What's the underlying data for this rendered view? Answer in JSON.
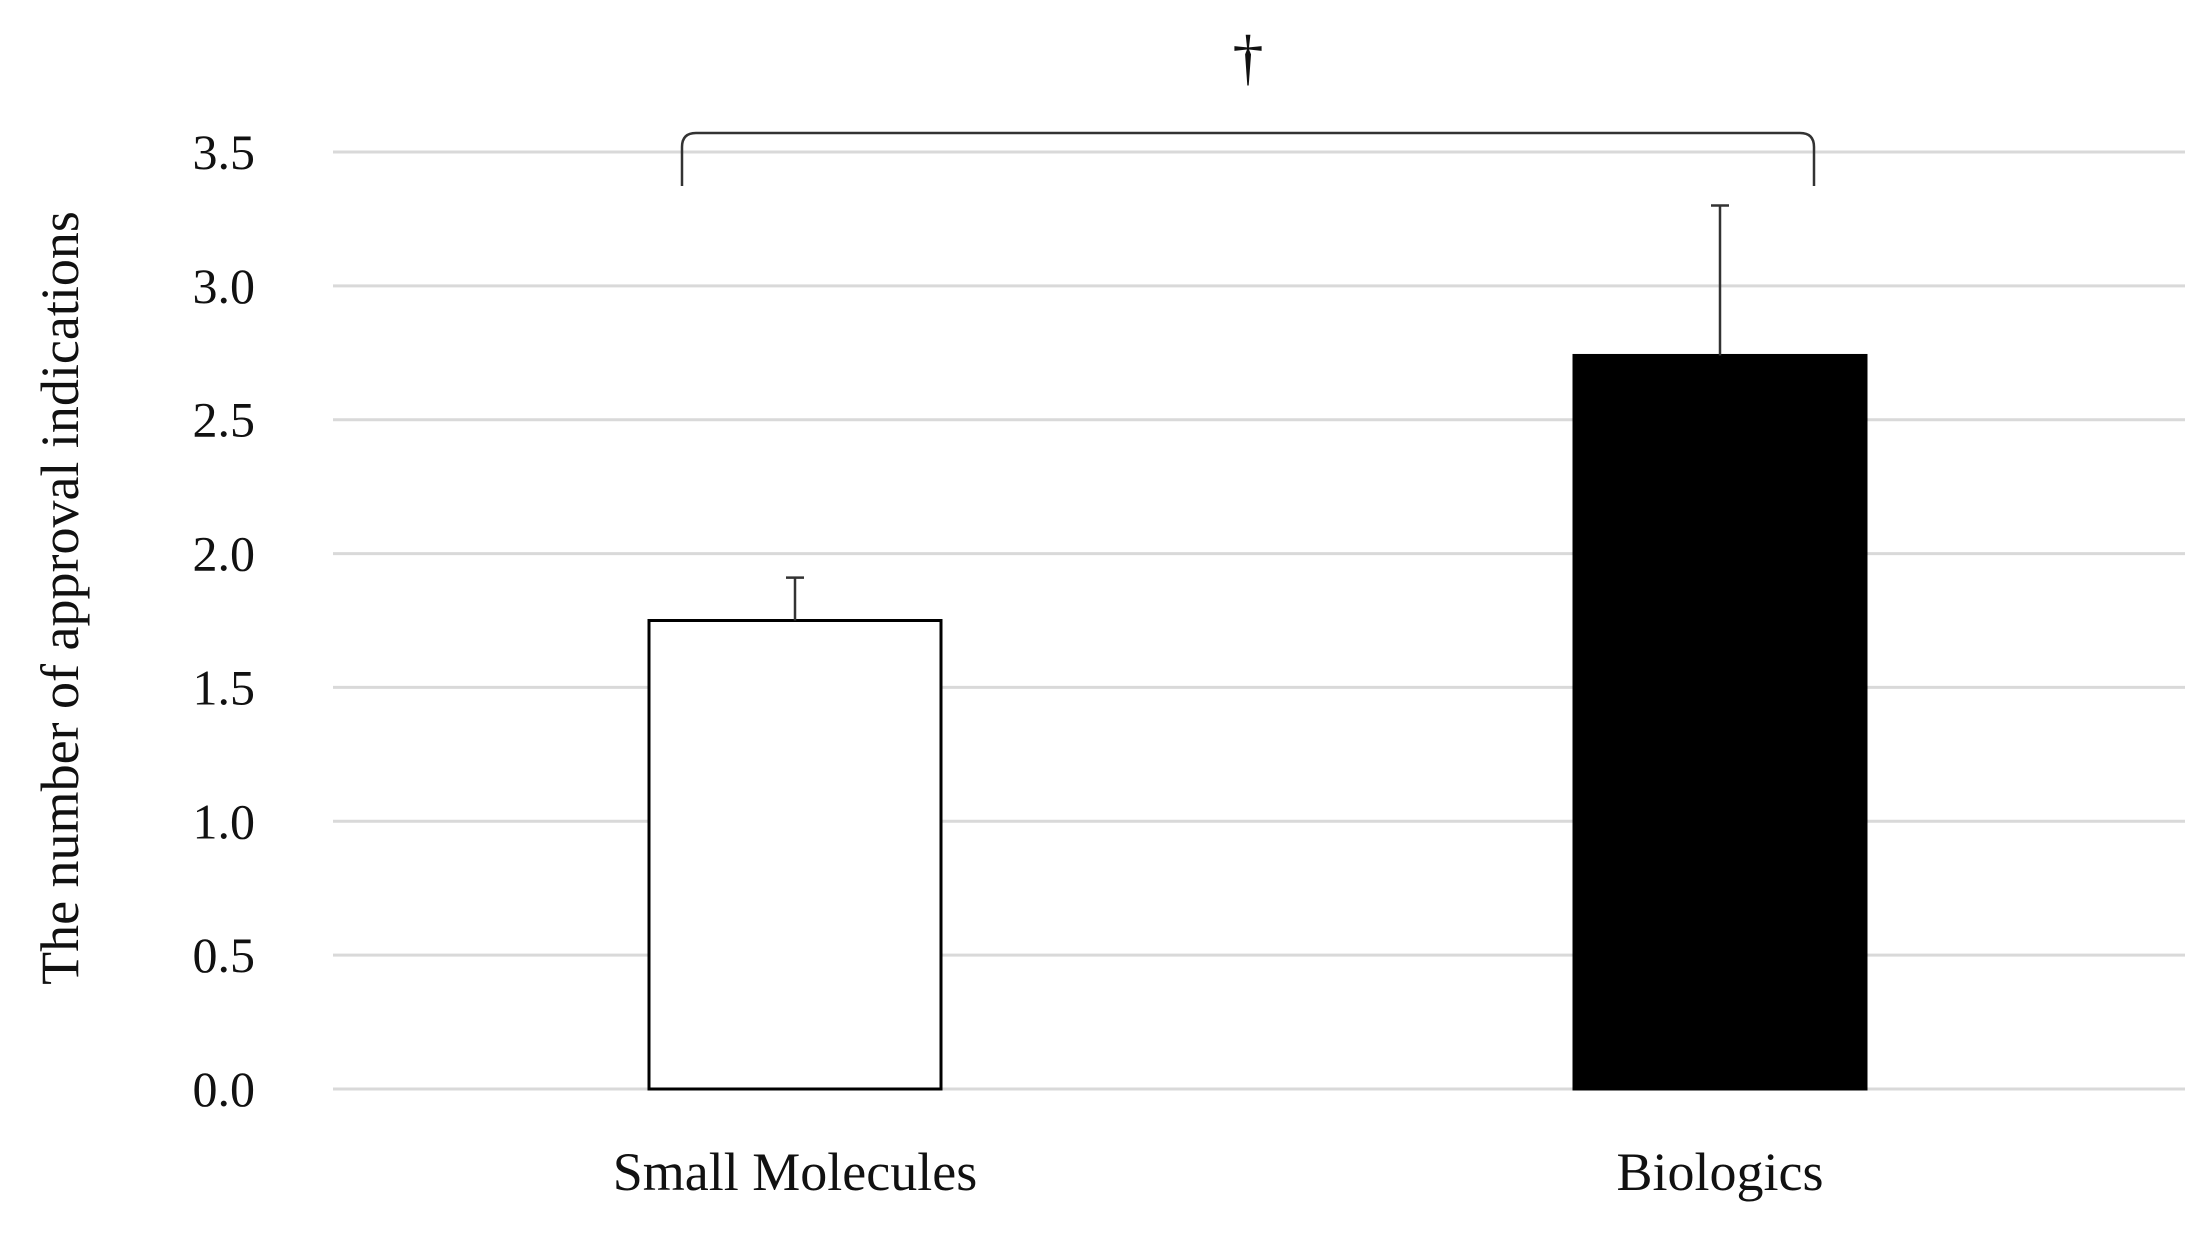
{
  "chart_data": {
    "type": "bar",
    "title": "",
    "xlabel": "",
    "ylabel": "The number of approval indications",
    "categories": [
      "Small Molecules",
      "Biologics"
    ],
    "values": [
      1.75,
      2.74
    ],
    "error_upper": [
      1.91,
      3.3
    ],
    "bar_colors": [
      "#ffffff",
      "#000000"
    ],
    "bar_edge_color": "#000000",
    "ylim": [
      0,
      3.5
    ],
    "yticks": [
      0.0,
      0.5,
      1.0,
      1.5,
      2.0,
      2.5,
      3.0,
      3.5
    ],
    "ytick_labels": [
      "0.0",
      "0.5",
      "1.0",
      "1.5",
      "2.0",
      "2.5",
      "3.0",
      "3.5"
    ],
    "grid": true,
    "grid_color": "#d9d9d9",
    "legend": "none",
    "significance": {
      "symbol": "†",
      "between": [
        "Small Molecules",
        "Biologics"
      ]
    }
  }
}
